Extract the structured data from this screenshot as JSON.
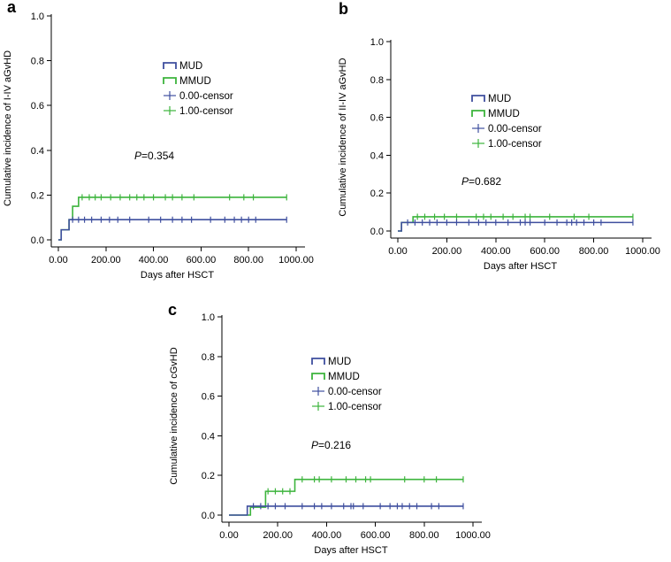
{
  "colors": {
    "MUD": "#3f4f9f",
    "MMUD": "#3cb43c"
  },
  "chart_data": [
    {
      "panel": "a",
      "type": "line",
      "subtype": "step-cumulative-incidence",
      "xlabel": "Days after HSCT",
      "ylabel": "Cumulative incidence of I-IV aGvHD",
      "xlim": [
        0,
        1000
      ],
      "ylim": [
        0,
        1
      ],
      "xticks": [
        "0.00",
        "200.00",
        "400.00",
        "600.00",
        "800.00",
        "1000.00"
      ],
      "yticks": [
        "0.0",
        "0.2",
        "0.4",
        "0.6",
        "0.8",
        "1.0"
      ],
      "legend": [
        "MUD",
        "MMUD",
        "0.00-censor",
        "1.00-censor"
      ],
      "annotation": {
        "p_label": "P",
        "p_value": "=0.354"
      },
      "series": [
        {
          "name": "MUD",
          "steps": [
            [
              0,
              0
            ],
            [
              12,
              0.045
            ],
            [
              30,
              0.045
            ],
            [
              45,
              0.09
            ],
            [
              960,
              0.09
            ]
          ],
          "censors": [
            60,
            85,
            110,
            140,
            180,
            215,
            250,
            300,
            380,
            430,
            480,
            520,
            560,
            640,
            700,
            740,
            770,
            800,
            830,
            960
          ]
        },
        {
          "name": "MMUD",
          "steps": [
            [
              0,
              0
            ],
            [
              12,
              0.045
            ],
            [
              30,
              0.045
            ],
            [
              45,
              0.09
            ],
            [
              60,
              0.15
            ],
            [
              85,
              0.19
            ],
            [
              960,
              0.19
            ]
          ],
          "censors": [
            100,
            130,
            155,
            180,
            220,
            260,
            300,
            330,
            360,
            400,
            450,
            480,
            520,
            570,
            720,
            780,
            820,
            960
          ]
        }
      ]
    },
    {
      "panel": "b",
      "type": "line",
      "subtype": "step-cumulative-incidence",
      "xlabel": "Days after HSCT",
      "ylabel": "Cumulative incidence of II-IV aGvHD",
      "xlim": [
        0,
        1000
      ],
      "ylim": [
        0,
        1
      ],
      "xticks": [
        "0.00",
        "200.00",
        "400.00",
        "600.00",
        "800.00",
        "1000.00"
      ],
      "yticks": [
        "0.0",
        "0.2",
        "0.4",
        "0.6",
        "0.8",
        "1.0"
      ],
      "legend": [
        "MUD",
        "MMUD",
        "0.00-censor",
        "1.00-censor"
      ],
      "annotation": {
        "p_label": "P",
        "p_value": "=0.682"
      },
      "series": [
        {
          "name": "MUD",
          "steps": [
            [
              0,
              0
            ],
            [
              15,
              0.045
            ],
            [
              960,
              0.045
            ]
          ],
          "censors": [
            40,
            70,
            100,
            130,
            160,
            200,
            240,
            290,
            330,
            360,
            400,
            450,
            500,
            520,
            540,
            600,
            650,
            690,
            710,
            730,
            760,
            800,
            830,
            960
          ]
        },
        {
          "name": "MMUD",
          "steps": [
            [
              0,
              0
            ],
            [
              15,
              0.045
            ],
            [
              60,
              0.045
            ],
            [
              62,
              0.075
            ],
            [
              960,
              0.075
            ]
          ],
          "censors": [
            80,
            110,
            150,
            190,
            240,
            320,
            350,
            380,
            430,
            470,
            520,
            540,
            620,
            720,
            780,
            960
          ]
        }
      ]
    },
    {
      "panel": "c",
      "type": "line",
      "subtype": "step-cumulative-incidence",
      "xlabel": "Days after HSCT",
      "ylabel": "Cumulative incidence of cGvHD",
      "xlim": [
        0,
        1000
      ],
      "ylim": [
        0,
        1
      ],
      "xticks": [
        "0.00",
        "200.00",
        "400.00",
        "600.00",
        "800.00",
        "1000.00"
      ],
      "yticks": [
        "0.0",
        "0.2",
        "0.4",
        "0.6",
        "0.8",
        "1.0"
      ],
      "legend": [
        "MUD",
        "MMUD",
        "0.00-censor",
        "1.00-censor"
      ],
      "annotation": {
        "p_label": "P",
        "p_value": "=0.216"
      },
      "series": [
        {
          "name": "MUD",
          "steps": [
            [
              0,
              0
            ],
            [
              70,
              0
            ],
            [
              75,
              0.045
            ],
            [
              960,
              0.045
            ]
          ],
          "censors": [
            100,
            130,
            160,
            190,
            230,
            300,
            350,
            380,
            420,
            470,
            500,
            510,
            550,
            620,
            660,
            690,
            710,
            740,
            770,
            830,
            860,
            960
          ]
        },
        {
          "name": "MMUD",
          "steps": [
            [
              0,
              0
            ],
            [
              85,
              0
            ],
            [
              88,
              0.04
            ],
            [
              145,
              0.04
            ],
            [
              150,
              0.12
            ],
            [
              265,
              0.12
            ],
            [
              270,
              0.18
            ],
            [
              960,
              0.18
            ]
          ],
          "censors": [
            160,
            190,
            220,
            250,
            300,
            350,
            370,
            420,
            480,
            520,
            560,
            580,
            720,
            800,
            850,
            960
          ]
        }
      ]
    }
  ]
}
